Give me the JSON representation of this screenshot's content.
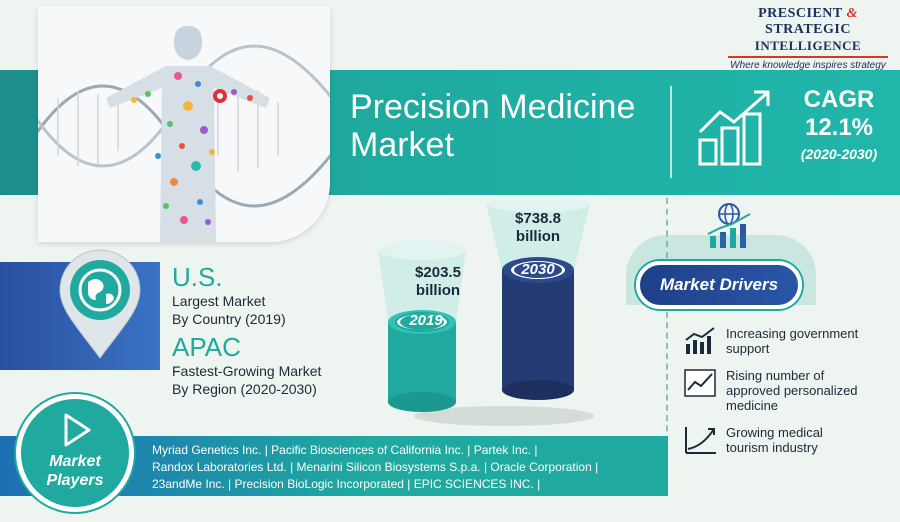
{
  "logo": {
    "line1_a": "PRESCIENT",
    "line1_amp": "&",
    "line1_b": "STRATEGIC",
    "line2": "INTELLIGENCE",
    "tagline": "Where knowledge inspires strategy"
  },
  "header": {
    "title_line1": "Precision Medicine",
    "title_line2": "Market",
    "cagr_label": "CAGR",
    "cagr_value": "12.1%",
    "cagr_period": "(2020-2030)"
  },
  "regions": {
    "country": "U.S.",
    "country_desc_line1": "Largest Market",
    "country_desc_line2": "By Country (2019)",
    "region": "APAC",
    "region_desc_line1": "Fastest-Growing Market",
    "region_desc_line2": "By Region (2020-2030)"
  },
  "market_size": {
    "y2019_value": "$203.5",
    "y2019_unit": "billion",
    "y2019_label": "2019",
    "y2030_value": "$738.8",
    "y2030_unit": "billion",
    "y2030_label": "2030"
  },
  "drivers": {
    "title": "Market Drivers",
    "items": [
      {
        "line1": "Increasing government",
        "line2": "support",
        "line3": "",
        "icon": "bar-chart-icon"
      },
      {
        "line1": "Rising number of",
        "line2": "approved personalized",
        "line3": "medicine",
        "icon": "line-chart-icon"
      },
      {
        "line1": "Growing medical",
        "line2": "tourism industry",
        "line3": "",
        "icon": "growth-curve-icon"
      }
    ]
  },
  "players": {
    "label_line1": "Market",
    "label_line2": "Players",
    "line1": "Myriad Genetics Inc. | Pacific Biosciences of California Inc. | Partek Inc. |",
    "line2": "Randox Laboratories Ltd. | Menarini Silicon Biosystems S.p.a. | Oracle Corporation |",
    "line3": "23andMe Inc. | Precision BioLogic Incorporated | EPIC SCIENCES INC. |"
  },
  "colors": {
    "teal": "#1fa99f",
    "navy": "#1f3f88",
    "cylinder_2019": "#1fa99f",
    "cylinder_2030": "#243a72",
    "accent_red": "#d33a26"
  }
}
